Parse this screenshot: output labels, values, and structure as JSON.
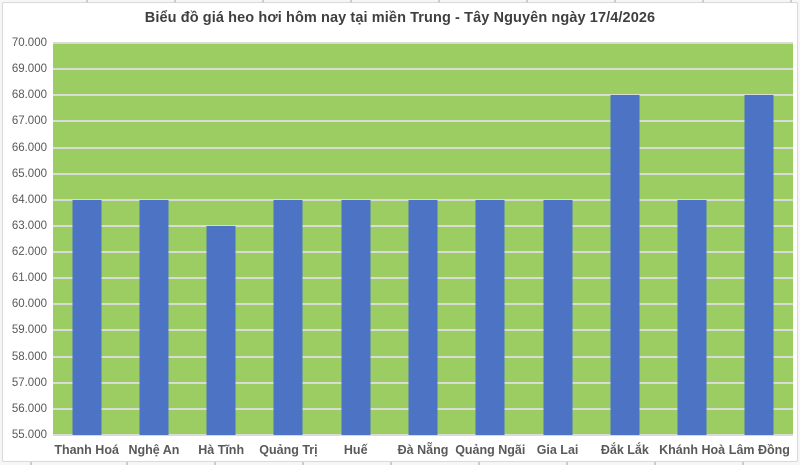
{
  "chart_data": {
    "type": "bar",
    "title": "Biểu đồ giá heo hơi hôm nay tại miền Trung - Tây Nguyên ngày 17/4/2026",
    "categories": [
      "Thanh Hoá",
      "Nghệ An",
      "Hà Tĩnh",
      "Quảng Trị",
      "Huế",
      "Đà Nẵng",
      "Quảng Ngãi",
      "Gia Lai",
      "Đắk Lắk",
      "Khánh Hoà",
      "Lâm Đồng"
    ],
    "values": [
      64000,
      64000,
      63000,
      64000,
      64000,
      64000,
      64000,
      64000,
      68000,
      64000,
      68000
    ],
    "xlabel": "",
    "ylabel": "",
    "ylim": [
      55000,
      70000
    ],
    "ytick_step": 1000,
    "yticks_top_to_bottom": [
      "70.000",
      "69.000",
      "68.000",
      "67.000",
      "66.000",
      "65.000",
      "64.000",
      "63.000",
      "62.000",
      "61.000",
      "60.000",
      "59.000",
      "58.000",
      "57.000",
      "56.000",
      "55.000"
    ],
    "grid": true,
    "legend": "none",
    "colors": {
      "bar": "#4d73c4",
      "plot_background": "#9bcd63",
      "gridline": "#d9dbd4",
      "title_text": "#3f3f3f",
      "axis_text": "#595959",
      "frame_border": "#d9d9d9"
    }
  }
}
